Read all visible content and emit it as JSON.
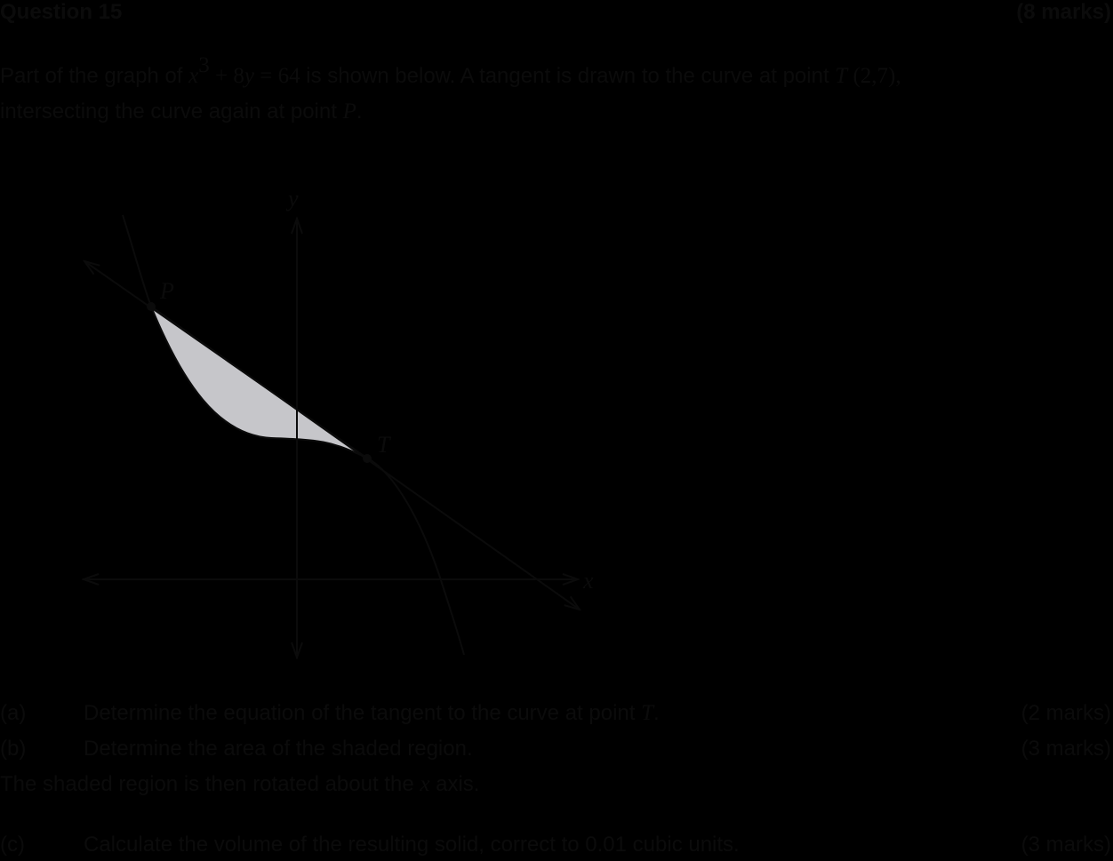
{
  "header": {
    "title": "Question 15",
    "marks": "(8 marks)"
  },
  "intro": {
    "line1_pre": "Part of the graph of ",
    "line1_x": "x",
    "line1_exp": "3",
    "line1_mid": " + 8",
    "line1_y": "y",
    "line1_eq": " = 64",
    "line1_post": " is shown below. A tangent is drawn to the curve at point ",
    "line1_T": "T",
    "line1_coord": " (2,7),",
    "line2_pre": "intersecting the curve again at point ",
    "line2_P": "P",
    "line2_post": "."
  },
  "graph": {
    "y_label": "y",
    "x_label": "x",
    "point_P": "P",
    "point_T": "T",
    "colors": {
      "line": "#0b0b0b",
      "shade": "#c6c6ca"
    }
  },
  "parts": {
    "a": {
      "label": "(a)",
      "text_pre": "Determine the equation of the tangent to the curve at point ",
      "text_T": "T",
      "text_post": ".",
      "marks": "(2 marks)"
    },
    "b": {
      "label": "(b)",
      "text": "Determine the area of the shaded region.",
      "marks": "(3 marks)"
    },
    "note": {
      "pre": "The shaded region is then rotated about the ",
      "x": "x",
      "post": " axis."
    },
    "c": {
      "label": "(c)",
      "text": "Calculate the volume of the resulting solid, correct to 0.01 cubic units.",
      "marks": "(3 marks)"
    }
  }
}
